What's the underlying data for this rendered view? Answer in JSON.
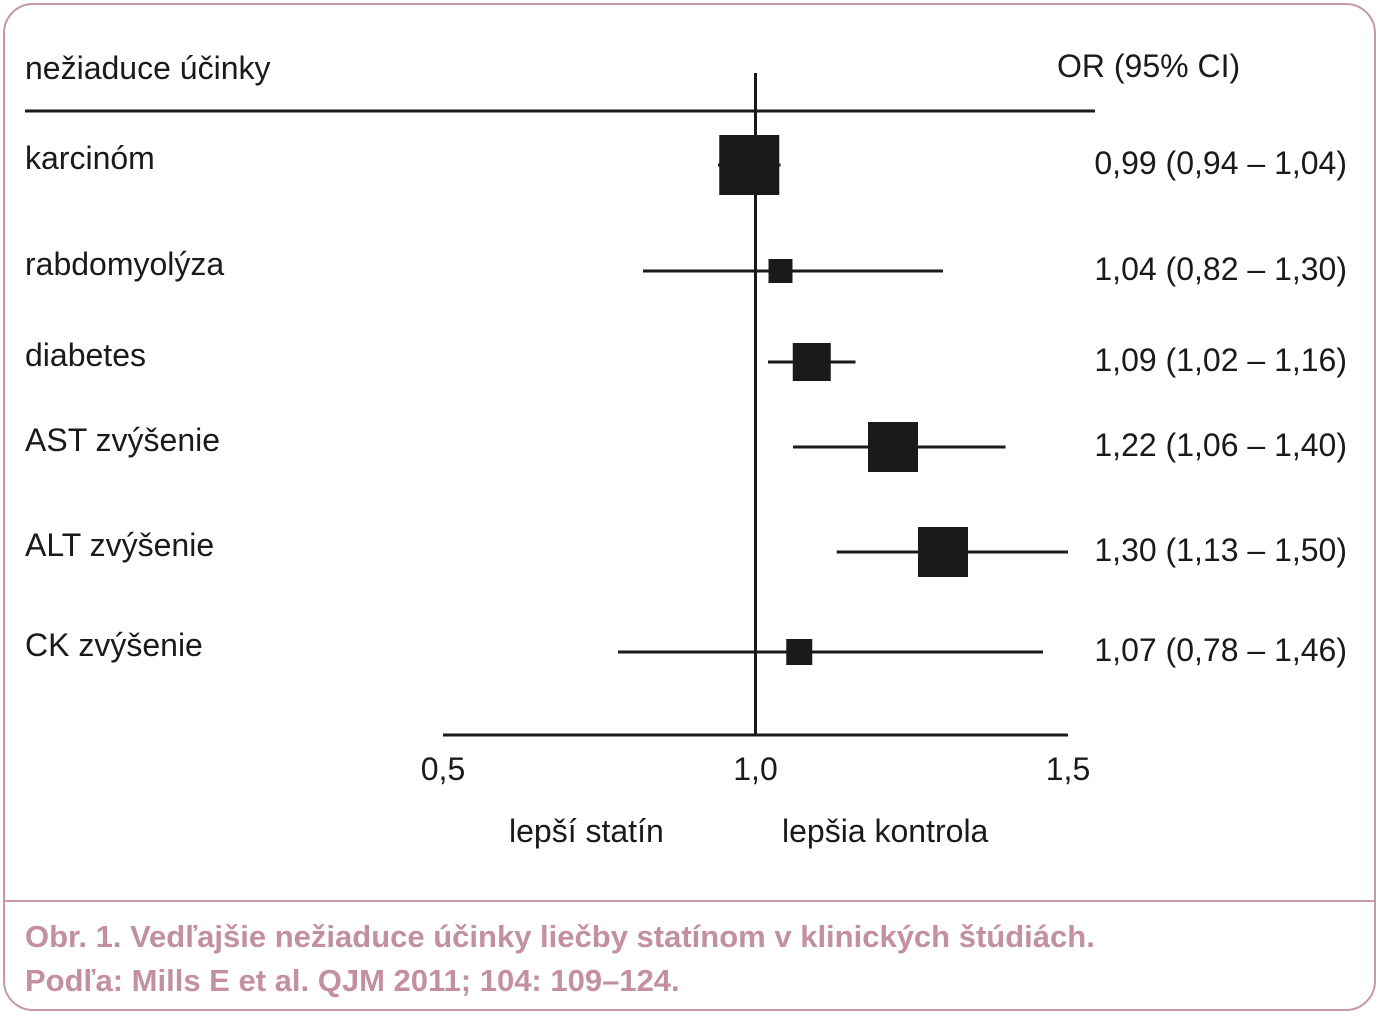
{
  "chart_data": {
    "type": "forest",
    "header_label": "nežiaduce účinky",
    "header_value": "OR (95% CI)",
    "rows": [
      {
        "label": "karcinóm",
        "or": 0.99,
        "ci_low": 0.94,
        "ci_high": 1.04,
        "text": "0,99 (0,94 – 1,04)"
      },
      {
        "label": "rabdomyolýza",
        "or": 1.04,
        "ci_low": 0.82,
        "ci_high": 1.3,
        "text": "1,04 (0,82 – 1,30)"
      },
      {
        "label": "diabetes",
        "or": 1.09,
        "ci_low": 1.02,
        "ci_high": 1.16,
        "text": "1,09 (1,02 – 1,16)"
      },
      {
        "label": "AST zvýšenie",
        "or": 1.22,
        "ci_low": 1.06,
        "ci_high": 1.4,
        "text": "1,22 (1,06 – 1,40)"
      },
      {
        "label": "ALT zvýšenie",
        "or": 1.3,
        "ci_low": 1.13,
        "ci_high": 1.5,
        "text": "1,30 (1,13 – 1,50)"
      },
      {
        "label": "CK zvýšenie",
        "or": 1.07,
        "ci_low": 0.78,
        "ci_high": 1.46,
        "text": "1,07 (0,78 – 1,46)"
      }
    ],
    "xlim": [
      0.5,
      1.5
    ],
    "x_ticks": [
      "0,5",
      "1,0",
      "1,5"
    ],
    "reference_value": 1.0,
    "left_direction_label": "lepší statín",
    "right_direction_label": "lepšia kontrola"
  },
  "caption": {
    "line1": "Obr. 1. Vedľajšie nežiaduce účinky liečby statínom v klinických štúdiách.",
    "line2": "Podľa: Mills E et al. QJM 2011; 104: 109–124."
  },
  "colors": {
    "border": "#c49aaa",
    "caption": "#c3909f",
    "marks": "#1a1a1a"
  }
}
